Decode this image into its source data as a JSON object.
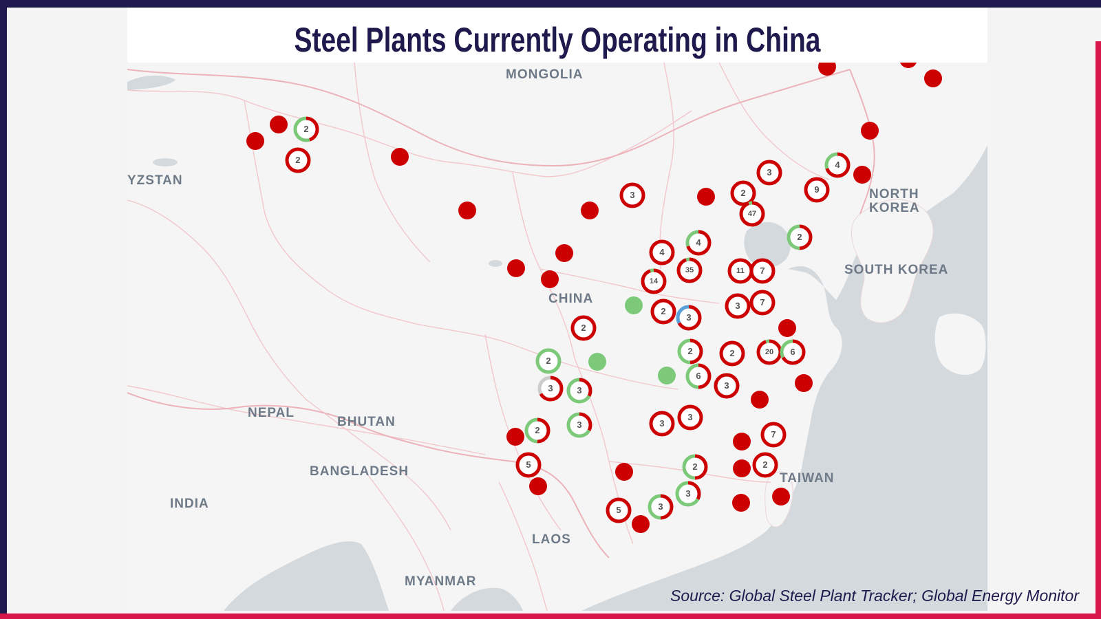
{
  "title": "Steel Plants Currently Operating in China",
  "source": "Source: Global Steel Plant Tracker; Global Energy Monitor",
  "colors": {
    "frame_dark": "#1f1a4d",
    "frame_accent": "#d9164b",
    "operating": "#cc0000",
    "other_status": "#7dc97a",
    "third_status": "#5aa0d8",
    "water": "#d4d9dd",
    "land": "#f5f5f5",
    "border": "#f2c7cc"
  },
  "map": {
    "country_labels": [
      {
        "id": "mongolia",
        "text": "MONGOLIA"
      },
      {
        "id": "kyrgyzstan",
        "text": "YZSTAN"
      },
      {
        "id": "china",
        "text": "CHINA"
      },
      {
        "id": "north-korea",
        "text": "NORTH\nKOREA"
      },
      {
        "id": "south-korea",
        "text": "SOUTH KOREA"
      },
      {
        "id": "nepal",
        "text": "NEPAL"
      },
      {
        "id": "bhutan",
        "text": "BHUTAN"
      },
      {
        "id": "bangladesh",
        "text": "BANGLADESH"
      },
      {
        "id": "india",
        "text": "INDIA"
      },
      {
        "id": "taiwan",
        "text": "TAIWAN"
      },
      {
        "id": "laos",
        "text": "LAOS"
      },
      {
        "id": "myanmar",
        "text": "MYANMAR"
      }
    ],
    "single_plants_red": 30,
    "single_plants_green": 3,
    "clusters": [
      {
        "count": "2",
        "green_share": 0.55
      },
      {
        "count": "2",
        "green_share": 0
      },
      {
        "count": "3",
        "green_share": 0
      },
      {
        "count": "2",
        "green_share": 0
      },
      {
        "count": "3",
        "green_share": 0
      },
      {
        "count": "4",
        "green_share": 0.3
      },
      {
        "count": "9",
        "green_share": 0
      },
      {
        "count": "47",
        "green_share": 0.05
      },
      {
        "count": "2",
        "green_share": 0.5
      },
      {
        "count": "4",
        "green_share": 0
      },
      {
        "count": "4",
        "green_share": 0.3
      },
      {
        "count": "35",
        "green_share": 0.05
      },
      {
        "count": "14",
        "green_share": 0.05
      },
      {
        "count": "11",
        "green_share": 0
      },
      {
        "count": "7",
        "green_share": 0
      },
      {
        "count": "3",
        "green_share": 0
      },
      {
        "count": "7",
        "green_share": 0
      },
      {
        "count": "2",
        "green_share": 0
      },
      {
        "count": "3",
        "green_share": 0,
        "blue_share": 0.33
      },
      {
        "count": "2",
        "green_share": 0
      },
      {
        "count": "2",
        "green_share": 1
      },
      {
        "count": "2",
        "green_share": 0.5
      },
      {
        "count": "2",
        "green_share": 0
      },
      {
        "count": "20",
        "green_share": 0.05
      },
      {
        "count": "6",
        "green_share": 0.33
      },
      {
        "count": "3",
        "green_share": 0,
        "grey_share": 0.33
      },
      {
        "count": "3",
        "green_share": 0.67
      },
      {
        "count": "6",
        "green_share": 0.5
      },
      {
        "count": "3",
        "green_share": 0
      },
      {
        "count": "2",
        "green_share": 0.5
      },
      {
        "count": "3",
        "green_share": 0.67
      },
      {
        "count": "3",
        "green_share": 0
      },
      {
        "count": "3",
        "green_share": 0
      },
      {
        "count": "5",
        "green_share": 0
      },
      {
        "count": "7",
        "green_share": 0
      },
      {
        "count": "2",
        "green_share": 0.5
      },
      {
        "count": "2",
        "green_share": 0
      },
      {
        "count": "3",
        "green_share": 0.5
      },
      {
        "count": "3",
        "green_share": 0.67
      },
      {
        "count": "5",
        "green_share": 0
      }
    ]
  }
}
